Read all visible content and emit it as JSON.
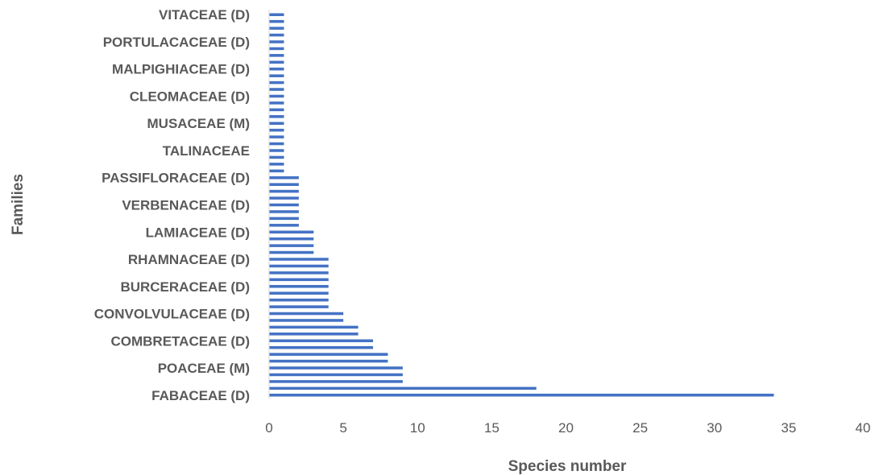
{
  "chart_data": {
    "type": "bar",
    "orientation": "horizontal",
    "xlabel": "Species number",
    "ylabel": "Families",
    "xlim": [
      0,
      40
    ],
    "xticks": [
      "0",
      "5",
      "10",
      "15",
      "20",
      "25",
      "30",
      "35",
      "40"
    ],
    "grid": false,
    "bar_color": "#4472C4",
    "axis_color": "#D9D9D9",
    "text_color": "#595959",
    "values": [
      34,
      18,
      9,
      9,
      9,
      8,
      8,
      7,
      7,
      6,
      6,
      5,
      5,
      4,
      4,
      4,
      4,
      4,
      4,
      4,
      4,
      3,
      3,
      3,
      3,
      2,
      2,
      2,
      2,
      2,
      2,
      2,
      2,
      1,
      1,
      1,
      1,
      1,
      1,
      1,
      1,
      1,
      1,
      1,
      1,
      1,
      1,
      1,
      1,
      1,
      1,
      1,
      1,
      1,
      1,
      1,
      1
    ],
    "category_labels": [
      {
        "index": 0,
        "text": "FABACEAE (D)"
      },
      {
        "index": 4,
        "text": "POACEAE (M)"
      },
      {
        "index": 8,
        "text": "COMBRETACEAE (D)"
      },
      {
        "index": 12,
        "text": "CONVOLVULACEAE (D)"
      },
      {
        "index": 16,
        "text": "BURCERACEAE (D)"
      },
      {
        "index": 20,
        "text": "RHAMNACEAE (D)"
      },
      {
        "index": 24,
        "text": "LAMIACEAE (D)"
      },
      {
        "index": 28,
        "text": "VERBENACEAE (D)"
      },
      {
        "index": 32,
        "text": "PASSIFLORACEAE (D)"
      },
      {
        "index": 36,
        "text": "TALINACEAE"
      },
      {
        "index": 40,
        "text": "MUSACEAE (M)"
      },
      {
        "index": 44,
        "text": "CLEOMACEAE (D)"
      },
      {
        "index": 48,
        "text": "MALPIGHIACEAE (D)"
      },
      {
        "index": 52,
        "text": "PORTULACACEAE (D)"
      },
      {
        "index": 56,
        "text": "VITACEAE (D)"
      }
    ]
  }
}
